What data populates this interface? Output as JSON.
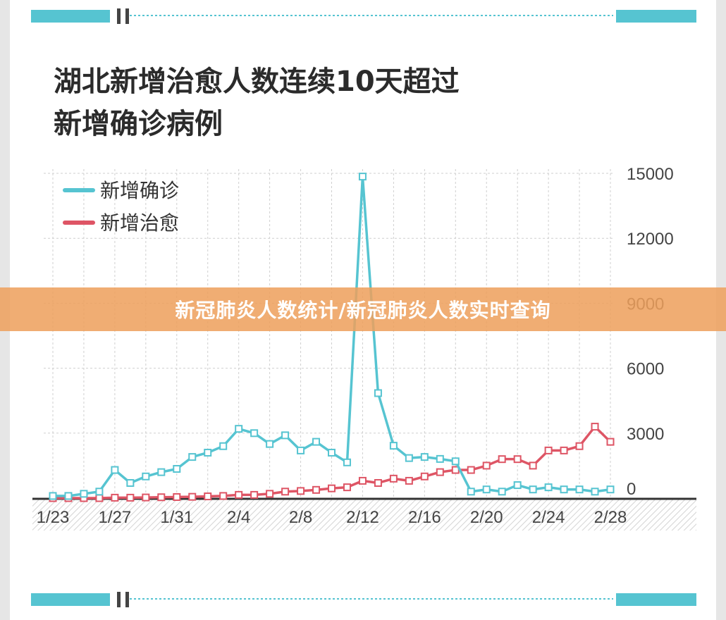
{
  "title_line1": "湖北新增治愈人数连续10天超过",
  "title_line2": "新增确诊病例",
  "banner": "新冠肺炎人数统计/新冠肺炎人数实时查询",
  "colors": {
    "confirmed": "#56c4d1",
    "cured": "#de5565",
    "accent_bar": "#56c4d1"
  },
  "chart_data": {
    "type": "line",
    "x": [
      "1/23",
      "1/24",
      "1/25",
      "1/26",
      "1/27",
      "1/28",
      "1/29",
      "1/30",
      "1/31",
      "2/1",
      "2/2",
      "2/3",
      "2/4",
      "2/5",
      "2/6",
      "2/7",
      "2/8",
      "2/9",
      "2/10",
      "2/11",
      "2/12",
      "2/13",
      "2/14",
      "2/15",
      "2/16",
      "2/17",
      "2/18",
      "2/19",
      "2/20",
      "2/21",
      "2/22",
      "2/23",
      "2/24",
      "2/25",
      "2/26",
      "2/27",
      "2/28"
    ],
    "x_tick_labels": [
      "1/23",
      "1/27",
      "1/31",
      "2/4",
      "2/8",
      "2/12",
      "2/16",
      "2/20",
      "2/24",
      "2/28"
    ],
    "y_ticks": [
      "15000",
      "12000",
      "9000",
      "6000",
      "3000",
      "0"
    ],
    "ylim": [
      0,
      15000
    ],
    "grid": true,
    "legend_position": "top-left",
    "series": [
      {
        "name": "新增确诊",
        "color": "#56c4d1",
        "values": [
          100,
          100,
          200,
          300,
          1300,
          700,
          1000,
          1200,
          1350,
          1900,
          2100,
          2400,
          3200,
          3000,
          2500,
          2900,
          2200,
          2600,
          2100,
          1650,
          14850,
          4850,
          2420,
          1850,
          1900,
          1810,
          1700,
          300,
          400,
          300,
          600,
          400,
          500,
          400,
          400,
          300,
          400
        ]
      },
      {
        "name": "新增治愈",
        "color": "#de5565",
        "values": [
          0,
          0,
          0,
          0,
          20,
          20,
          30,
          40,
          50,
          60,
          80,
          100,
          150,
          150,
          200,
          300,
          330,
          380,
          450,
          500,
          800,
          700,
          900,
          800,
          1000,
          1200,
          1300,
          1300,
          1500,
          1800,
          1800,
          1500,
          2200,
          2200,
          2400,
          3300,
          2600
        ]
      }
    ]
  }
}
